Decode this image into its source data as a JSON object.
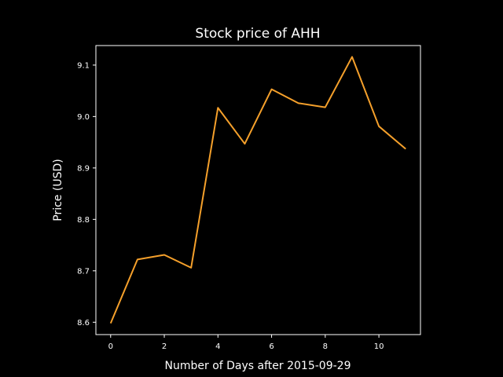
{
  "chart_data": {
    "type": "line",
    "title": "Stock price of AHH",
    "xlabel": "Number of Days after 2015-09-29",
    "ylabel": "Price (USD)",
    "x": [
      0,
      1,
      2,
      3,
      4,
      5,
      6,
      7,
      8,
      9,
      10,
      11
    ],
    "series": [
      {
        "values": [
          8.598,
          8.722,
          8.731,
          8.706,
          9.017,
          8.947,
          9.053,
          9.026,
          9.018,
          9.116,
          8.981,
          8.937
        ],
        "color": "#f5a02b"
      }
    ],
    "xlim": [
      -0.55,
      11.55
    ],
    "ylim": [
      8.576,
      9.138
    ],
    "xticks": [
      0,
      2,
      4,
      6,
      8,
      10
    ],
    "yticks": [
      8.6,
      8.7,
      8.8,
      8.9,
      9.0,
      9.1
    ],
    "ytick_labels": [
      "8.6",
      "8.7",
      "8.8",
      "8.9",
      "9.0",
      "9.1"
    ],
    "grid": false,
    "background": "#000000",
    "foreground": "#ffffff"
  }
}
